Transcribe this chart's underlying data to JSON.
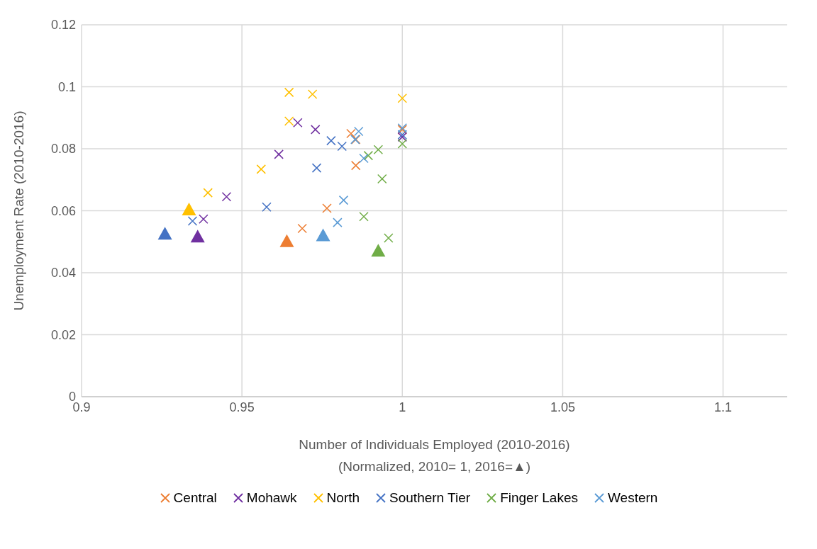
{
  "chart_data": {
    "type": "scatter",
    "xlabel": "Number of Individuals Employed (2010-2016)\n(Normalized, 2010= 1, 2016=▲)",
    "ylabel": "Unemployment Rate (2010-2016)",
    "xlim": [
      0.9,
      1.12
    ],
    "xticks": [
      0.9,
      0.95,
      1,
      1.05,
      1.1
    ],
    "ylim": [
      0,
      0.12
    ],
    "yticks": [
      0,
      0.02,
      0.04,
      0.06,
      0.08,
      0.1,
      0.12
    ],
    "grid": true,
    "legend": "bottom",
    "marker": "cross",
    "series": [
      {
        "name": "Central",
        "color": "#ed7d31",
        "x": [
          1,
          0.984,
          0.9855,
          0.9855,
          0.9765,
          0.9688
        ],
        "values": [
          0.0862,
          0.0849,
          0.083,
          0.0746,
          0.0608,
          0.0543
        ]
      },
      {
        "name": "Mohawk",
        "color": "#7030a0",
        "x": [
          1,
          0.9674,
          0.9729,
          0.9615,
          0.9452,
          0.938
        ],
        "values": [
          0.0838,
          0.0884,
          0.0862,
          0.0782,
          0.0645,
          0.0573
        ]
      },
      {
        "name": "North",
        "color": "#ffc000",
        "x": [
          1,
          0.9647,
          0.972,
          0.9647,
          0.956,
          0.9394
        ],
        "values": [
          0.0963,
          0.0982,
          0.0976,
          0.0889,
          0.0734,
          0.0658
        ]
      },
      {
        "name": "Southern Tier",
        "color": "#4472c4",
        "x": [
          1,
          0.9778,
          0.9812,
          0.9733,
          0.9577,
          0.9346
        ],
        "values": [
          0.0845,
          0.0826,
          0.0808,
          0.0738,
          0.0612,
          0.0567
        ]
      },
      {
        "name": "Finger Lakes",
        "color": "#70ad47",
        "x": [
          1,
          0.9925,
          0.9894,
          0.9937,
          0.988,
          0.9957
        ],
        "values": [
          0.0816,
          0.0797,
          0.0778,
          0.0703,
          0.0581,
          0.0512
        ]
      },
      {
        "name": "Western",
        "color": "#5b9bd5",
        "x": [
          1,
          0.9864,
          0.9853,
          0.988,
          0.9817,
          0.9798
        ],
        "values": [
          0.0867,
          0.0856,
          0.083,
          0.0769,
          0.0634,
          0.0562
        ]
      },
      {
        "color": "#ed7d31",
        "marker": "triangle",
        "x": [
          0.964
        ],
        "values": [
          0.0499
        ]
      },
      {
        "color": "#7030a0",
        "marker": "triangle",
        "x": [
          0.9362
        ],
        "values": [
          0.0514
        ]
      },
      {
        "color": "#ffc000",
        "marker": "triangle",
        "x": [
          0.9335
        ],
        "values": [
          0.0601
        ]
      },
      {
        "color": "#4472c4",
        "marker": "triangle",
        "x": [
          0.926
        ],
        "values": [
          0.0523
        ]
      },
      {
        "color": "#70ad47",
        "marker": "triangle",
        "x": [
          0.9925
        ],
        "values": [
          0.0468
        ]
      },
      {
        "color": "#5b9bd5",
        "marker": "triangle",
        "x": [
          0.9753
        ],
        "values": [
          0.0518
        ]
      }
    ]
  }
}
